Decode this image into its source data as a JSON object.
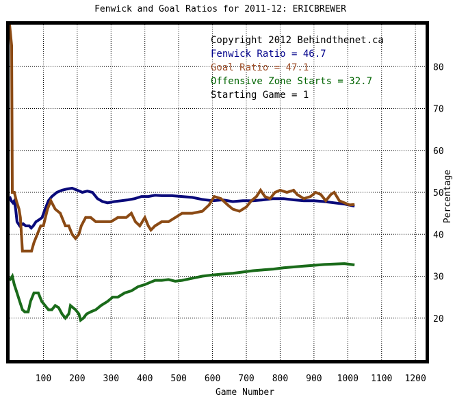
{
  "chart_data": {
    "type": "line",
    "title": "Fenwick and Goal Ratios for 2011-12: ERICBREWER",
    "xlabel": "Game Number",
    "ylabel": "Percentage",
    "xlim": [
      0,
      1230
    ],
    "ylim": [
      10,
      90
    ],
    "x_ticks": [
      100,
      200,
      300,
      400,
      500,
      600,
      700,
      800,
      900,
      1000,
      1100,
      1200
    ],
    "y_ticks": [
      20,
      30,
      40,
      50,
      60,
      70,
      80
    ],
    "grid": true,
    "annotations": [
      {
        "text": "Copyright 2012 Behindthenet.ca",
        "color": "#000000"
      },
      {
        "text": "Fenwick Ratio = 46.7",
        "color": "#00008b"
      },
      {
        "text": "Goal Ratio = 47.1",
        "color": "#a0522d"
      },
      {
        "text": "Offensive Zone Starts = 32.7",
        "color": "#006400"
      },
      {
        "text": "Starting Game = 1",
        "color": "#000000"
      }
    ],
    "series": [
      {
        "color": "#0a0a7a",
        "points": [
          [
            0,
            49
          ],
          [
            5,
            48
          ],
          [
            10,
            47.5
          ],
          [
            14,
            48
          ],
          [
            18,
            46
          ],
          [
            22,
            43
          ],
          [
            30,
            42
          ],
          [
            40,
            42.5
          ],
          [
            48,
            42
          ],
          [
            58,
            42
          ],
          [
            64,
            41.5
          ],
          [
            70,
            42
          ],
          [
            78,
            43
          ],
          [
            88,
            43.5
          ],
          [
            96,
            44
          ],
          [
            105,
            46
          ],
          [
            115,
            48
          ],
          [
            125,
            49
          ],
          [
            140,
            50
          ],
          [
            155,
            50.5
          ],
          [
            170,
            50.8
          ],
          [
            185,
            51
          ],
          [
            200,
            50.5
          ],
          [
            215,
            50
          ],
          [
            230,
            50.3
          ],
          [
            245,
            50
          ],
          [
            260,
            48.5
          ],
          [
            275,
            47.8
          ],
          [
            290,
            47.5
          ],
          [
            310,
            47.8
          ],
          [
            330,
            48
          ],
          [
            350,
            48.2
          ],
          [
            370,
            48.5
          ],
          [
            390,
            49
          ],
          [
            410,
            49
          ],
          [
            430,
            49.3
          ],
          [
            450,
            49.2
          ],
          [
            480,
            49.2
          ],
          [
            510,
            49
          ],
          [
            540,
            48.8
          ],
          [
            570,
            48.3
          ],
          [
            600,
            48
          ],
          [
            630,
            48.2
          ],
          [
            660,
            47.8
          ],
          [
            690,
            48
          ],
          [
            720,
            48
          ],
          [
            750,
            48.2
          ],
          [
            780,
            48.5
          ],
          [
            810,
            48.5
          ],
          [
            840,
            48.2
          ],
          [
            870,
            48
          ],
          [
            900,
            48
          ],
          [
            930,
            47.8
          ],
          [
            960,
            47.5
          ],
          [
            990,
            47.2
          ],
          [
            1020,
            46.7
          ]
        ]
      },
      {
        "color": "#8b4a14",
        "points": [
          [
            0,
            90
          ],
          [
            6,
            85
          ],
          [
            8,
            50
          ],
          [
            14,
            50
          ],
          [
            20,
            48
          ],
          [
            28,
            46
          ],
          [
            32,
            44
          ],
          [
            38,
            36
          ],
          [
            55,
            36
          ],
          [
            65,
            36
          ],
          [
            72,
            38
          ],
          [
            82,
            40
          ],
          [
            92,
            42
          ],
          [
            100,
            42
          ],
          [
            106,
            44
          ],
          [
            112,
            46
          ],
          [
            122,
            48
          ],
          [
            135,
            46
          ],
          [
            150,
            45
          ],
          [
            165,
            42
          ],
          [
            175,
            42
          ],
          [
            185,
            40
          ],
          [
            195,
            39
          ],
          [
            205,
            40
          ],
          [
            212,
            42
          ],
          [
            225,
            44
          ],
          [
            240,
            44
          ],
          [
            255,
            43
          ],
          [
            270,
            43
          ],
          [
            285,
            43
          ],
          [
            300,
            43
          ],
          [
            320,
            44
          ],
          [
            345,
            44
          ],
          [
            360,
            45
          ],
          [
            372,
            43
          ],
          [
            385,
            42
          ],
          [
            400,
            44
          ],
          [
            410,
            42
          ],
          [
            418,
            41
          ],
          [
            430,
            42
          ],
          [
            450,
            43
          ],
          [
            470,
            43
          ],
          [
            490,
            44
          ],
          [
            510,
            45
          ],
          [
            540,
            45
          ],
          [
            570,
            45.5
          ],
          [
            590,
            47
          ],
          [
            605,
            49
          ],
          [
            625,
            48.5
          ],
          [
            645,
            47
          ],
          [
            660,
            46
          ],
          [
            680,
            45.5
          ],
          [
            700,
            46.5
          ],
          [
            715,
            48
          ],
          [
            730,
            49
          ],
          [
            742,
            50.5
          ],
          [
            755,
            49
          ],
          [
            770,
            48.5
          ],
          [
            785,
            50
          ],
          [
            800,
            50.5
          ],
          [
            820,
            50
          ],
          [
            840,
            50.5
          ],
          [
            850,
            49.5
          ],
          [
            870,
            48.5
          ],
          [
            890,
            49
          ],
          [
            905,
            50
          ],
          [
            920,
            49.5
          ],
          [
            935,
            48
          ],
          [
            950,
            49.5
          ],
          [
            960,
            50
          ],
          [
            975,
            48
          ],
          [
            990,
            47.5
          ],
          [
            1005,
            47
          ],
          [
            1020,
            47.1
          ]
        ]
      },
      {
        "color": "#1a6b1a",
        "points": [
          [
            0,
            29
          ],
          [
            8,
            30
          ],
          [
            14,
            28
          ],
          [
            22,
            26
          ],
          [
            30,
            24
          ],
          [
            38,
            22
          ],
          [
            45,
            21.5
          ],
          [
            55,
            21.5
          ],
          [
            62,
            24
          ],
          [
            72,
            26
          ],
          [
            85,
            26
          ],
          [
            95,
            24
          ],
          [
            105,
            23
          ],
          [
            115,
            22
          ],
          [
            125,
            22
          ],
          [
            135,
            23
          ],
          [
            145,
            22.5
          ],
          [
            155,
            21
          ],
          [
            165,
            20
          ],
          [
            175,
            21
          ],
          [
            180,
            23
          ],
          [
            195,
            22
          ],
          [
            205,
            21
          ],
          [
            210,
            19.5
          ],
          [
            218,
            20
          ],
          [
            228,
            21
          ],
          [
            240,
            21.5
          ],
          [
            255,
            22
          ],
          [
            270,
            23
          ],
          [
            290,
            24
          ],
          [
            305,
            25
          ],
          [
            320,
            25
          ],
          [
            340,
            26
          ],
          [
            360,
            26.5
          ],
          [
            380,
            27.5
          ],
          [
            400,
            28
          ],
          [
            415,
            28.5
          ],
          [
            430,
            29
          ],
          [
            450,
            29
          ],
          [
            470,
            29.2
          ],
          [
            490,
            28.8
          ],
          [
            510,
            29
          ],
          [
            540,
            29.5
          ],
          [
            570,
            30
          ],
          [
            600,
            30.3
          ],
          [
            630,
            30.5
          ],
          [
            660,
            30.7
          ],
          [
            690,
            31
          ],
          [
            720,
            31.3
          ],
          [
            750,
            31.5
          ],
          [
            780,
            31.7
          ],
          [
            810,
            32
          ],
          [
            840,
            32.2
          ],
          [
            870,
            32.4
          ],
          [
            900,
            32.6
          ],
          [
            930,
            32.8
          ],
          [
            960,
            32.9
          ],
          [
            990,
            33
          ],
          [
            1020,
            32.7
          ]
        ]
      }
    ]
  }
}
